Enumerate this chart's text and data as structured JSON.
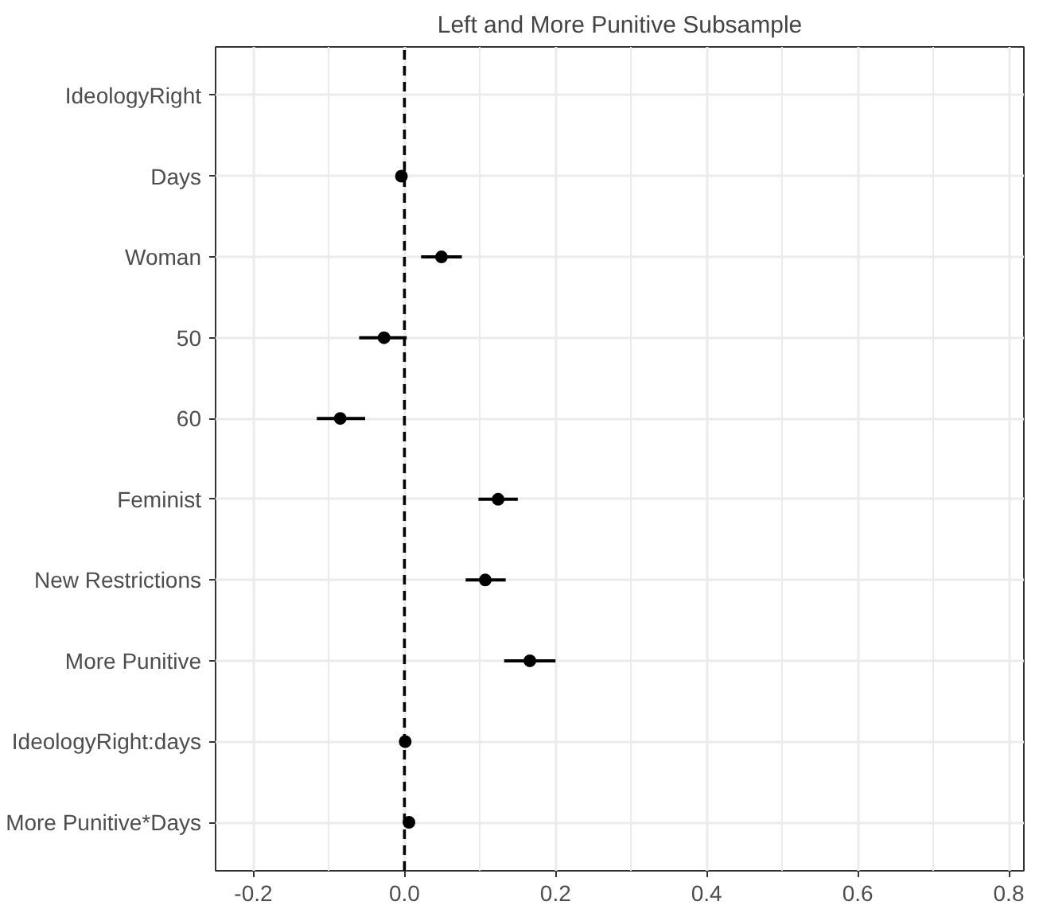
{
  "chart_data": {
    "type": "scatter",
    "orientation": "horizontal",
    "title": "Left and More Punitive Subsample",
    "categories": [
      "IdeologyRight",
      "Days",
      "Woman",
      "50",
      "60",
      "Feminist",
      "New Restrictions",
      "More Punitive",
      "IdeologyRight:days",
      "More Punitive*Days"
    ],
    "values": [
      null,
      -0.004,
      0.049,
      -0.027,
      -0.085,
      0.124,
      0.107,
      0.166,
      0.001,
      0.006
    ],
    "errors": [
      null,
      null,
      [
        0.022,
        0.076
      ],
      [
        -0.06,
        0.003
      ],
      [
        -0.116,
        -0.052
      ],
      [
        0.098,
        0.15
      ],
      [
        0.081,
        0.134
      ],
      [
        0.132,
        0.2
      ],
      null,
      null
    ],
    "color": "#000000",
    "marker": "circle",
    "xlim": [
      -0.25,
      0.82
    ],
    "xticks": [
      -0.2,
      {
        "value": 0,
        "label": "0.0"
      },
      0.2,
      0.4,
      0.6,
      0.8
    ],
    "ref_lines": [
      {
        "axis": "x",
        "value": 0,
        "line_style": "dashed",
        "color": "#000000"
      }
    ],
    "grid": true
  }
}
